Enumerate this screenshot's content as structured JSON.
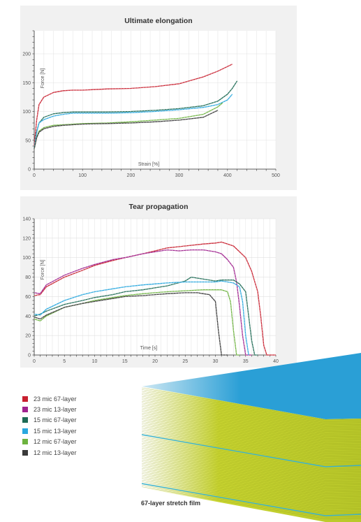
{
  "series_legend": [
    {
      "name": "23 mic 67-layer",
      "color": "#c8202f"
    },
    {
      "name": "23 mic 13-layer",
      "color": "#a0238f"
    },
    {
      "name": "15 mic 67-layer",
      "color": "#1e6b55"
    },
    {
      "name": "15 mic 13-layer",
      "color": "#29a8df"
    },
    {
      "name": "12 mic 67-layer",
      "color": "#6db33f"
    },
    {
      "name": "12 mic 13-layer",
      "color": "#3a3a3a"
    }
  ],
  "film_caption": "67-layer stretch film",
  "film_colors": {
    "top": "#2a9fd6",
    "layers": "#c8d430",
    "stripe": "#3bb0c9"
  },
  "chart_data": [
    {
      "type": "line",
      "title": "Ultimate elongation",
      "xlabel": "Strain [%]",
      "ylabel": "Force [N]",
      "xlim": [
        0,
        500
      ],
      "ylim": [
        0,
        240
      ],
      "xticks": [
        0,
        100,
        200,
        300,
        400,
        500
      ],
      "yticks": [
        0,
        50,
        100,
        150,
        200
      ],
      "grid": true,
      "series": [
        {
          "name": "23 mic 67-layer",
          "color": "#c8202f",
          "x": [
            0,
            5,
            10,
            20,
            40,
            60,
            80,
            100,
            150,
            200,
            250,
            300,
            350,
            380,
            400,
            410
          ],
          "y": [
            40,
            85,
            112,
            125,
            133,
            136,
            137,
            137,
            139,
            140,
            143,
            148,
            160,
            170,
            178,
            182
          ]
        },
        {
          "name": "15 mic 67-layer",
          "color": "#1e6b55",
          "x": [
            0,
            5,
            10,
            20,
            40,
            60,
            80,
            100,
            150,
            200,
            250,
            300,
            350,
            380,
            400,
            410,
            420
          ],
          "y": [
            36,
            65,
            80,
            90,
            96,
            98,
            99,
            99,
            99,
            100,
            102,
            105,
            110,
            118,
            130,
            140,
            153
          ]
        },
        {
          "name": "15 mic 13-layer",
          "color": "#29a8df",
          "x": [
            0,
            5,
            10,
            20,
            40,
            60,
            80,
            100,
            150,
            200,
            250,
            300,
            350,
            380,
            400,
            410
          ],
          "y": [
            36,
            63,
            80,
            86,
            92,
            95,
            97,
            97,
            97,
            98,
            100,
            103,
            107,
            112,
            120,
            130
          ]
        },
        {
          "name": "12 mic 67-layer",
          "color": "#6db33f",
          "x": [
            0,
            5,
            10,
            20,
            40,
            60,
            80,
            100,
            150,
            200,
            250,
            300,
            350,
            380,
            390
          ],
          "y": [
            35,
            55,
            66,
            72,
            76,
            77,
            78,
            79,
            80,
            82,
            85,
            88,
            95,
            108,
            115
          ]
        },
        {
          "name": "12 mic 13-layer",
          "color": "#3a3a3a",
          "x": [
            0,
            5,
            10,
            20,
            40,
            60,
            80,
            100,
            150,
            200,
            250,
            300,
            350,
            370,
            380
          ],
          "y": [
            35,
            54,
            64,
            70,
            74,
            76,
            77,
            78,
            79,
            80,
            82,
            85,
            90,
            98,
            102
          ]
        }
      ]
    },
    {
      "type": "line",
      "title": "Tear propagation",
      "xlabel": "Time [s]",
      "ylabel": "Force [N]",
      "xlim": [
        0,
        40
      ],
      "ylim": [
        0,
        140
      ],
      "xticks": [
        0,
        5,
        10,
        15,
        20,
        25,
        30,
        35,
        40
      ],
      "yticks": [
        0,
        20,
        40,
        60,
        80,
        100,
        120,
        140
      ],
      "grid": true,
      "series": [
        {
          "name": "23 mic 67-layer",
          "color": "#c8202f",
          "x": [
            0,
            1,
            2,
            5,
            8,
            10,
            13,
            15,
            18,
            20,
            22,
            25,
            28,
            30,
            31,
            33,
            35,
            36,
            37,
            37.5,
            38,
            38.5,
            39,
            40
          ],
          "y": [
            61,
            62,
            70,
            80,
            87,
            92,
            97,
            100,
            104,
            107,
            110,
            112,
            114,
            115,
            116,
            112,
            100,
            86,
            65,
            40,
            10,
            0,
            0,
            0
          ]
        },
        {
          "name": "23 mic 13-layer",
          "color": "#a0238f",
          "x": [
            0,
            1,
            2,
            5,
            8,
            10,
            13,
            15,
            18,
            20,
            22,
            24,
            26,
            28,
            30,
            31,
            32,
            33,
            33.5,
            34,
            34.5,
            35,
            36
          ],
          "y": [
            64,
            63,
            72,
            82,
            89,
            93,
            98,
            100,
            104,
            106,
            108,
            107,
            108,
            108,
            106,
            104,
            98,
            90,
            75,
            50,
            20,
            0,
            0
          ]
        },
        {
          "name": "15 mic 67-layer",
          "color": "#1e6b55",
          "x": [
            0,
            1,
            2,
            5,
            8,
            10,
            13,
            15,
            18,
            20,
            22,
            25,
            26,
            28,
            30,
            31,
            32,
            33,
            34,
            35,
            35.5,
            36,
            36.5,
            37
          ],
          "y": [
            40,
            42,
            45,
            52,
            56,
            59,
            62,
            65,
            67,
            69,
            71,
            76,
            80,
            78,
            76,
            77,
            77,
            77,
            73,
            65,
            40,
            15,
            0,
            0
          ]
        },
        {
          "name": "15 mic 13-layer",
          "color": "#29a8df",
          "x": [
            0,
            1,
            2,
            5,
            8,
            10,
            13,
            15,
            18,
            20,
            22,
            25,
            28,
            30,
            31,
            32,
            33,
            34,
            34.5,
            35,
            35.5
          ],
          "y": [
            42,
            41,
            47,
            56,
            62,
            65,
            68,
            70,
            72,
            73,
            74,
            75,
            75,
            75,
            76,
            75,
            74,
            70,
            55,
            20,
            0
          ]
        },
        {
          "name": "12 mic 67-layer",
          "color": "#6db33f",
          "x": [
            0,
            1,
            2,
            5,
            8,
            10,
            13,
            15,
            18,
            20,
            22,
            25,
            28,
            30,
            31,
            32,
            32.5,
            33,
            33.5,
            34
          ],
          "y": [
            37,
            35,
            40,
            49,
            53,
            56,
            59,
            61,
            63,
            64,
            65,
            66,
            67,
            67,
            67,
            65,
            55,
            25,
            0,
            0
          ]
        },
        {
          "name": "12 mic 13-layer",
          "color": "#3a3a3a",
          "x": [
            0,
            1,
            2,
            5,
            8,
            10,
            13,
            15,
            18,
            20,
            22,
            25,
            27,
            28,
            29,
            30,
            30.5,
            31,
            32
          ],
          "y": [
            39,
            37,
            41,
            49,
            53,
            55,
            58,
            60,
            61,
            62,
            63,
            64,
            64,
            63,
            62,
            55,
            25,
            0,
            0
          ]
        }
      ]
    }
  ]
}
